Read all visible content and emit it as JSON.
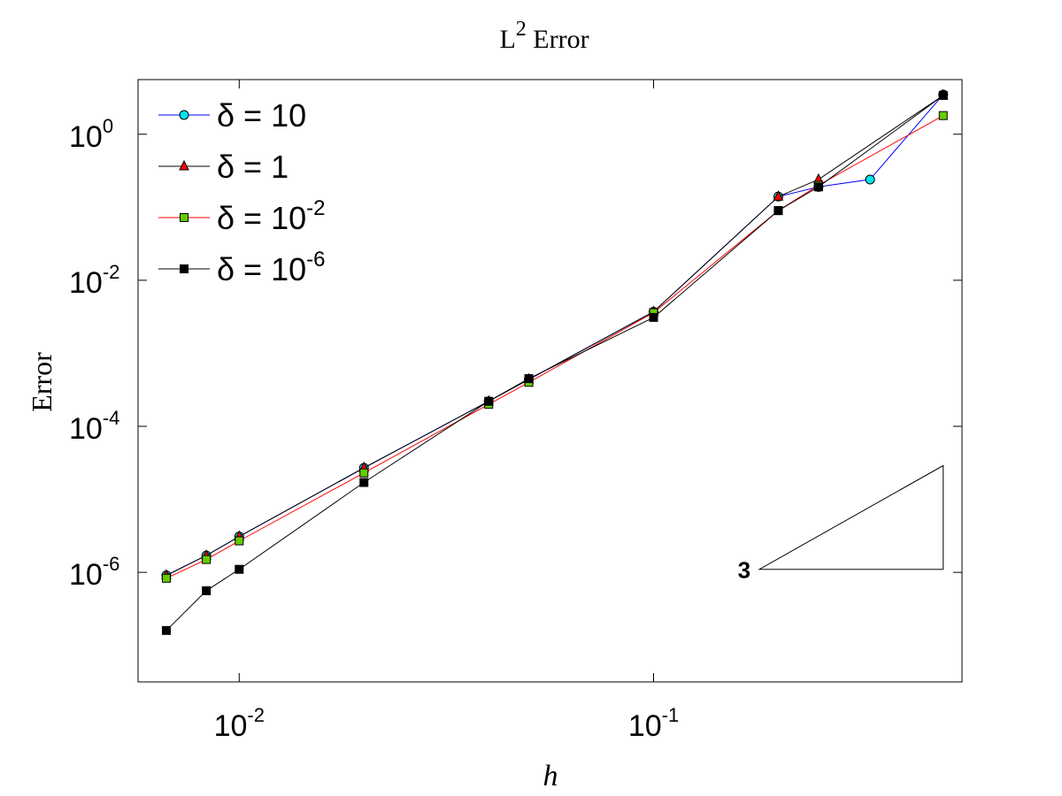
{
  "chart_data": {
    "type": "line",
    "title_main": "L",
    "title_sup": "2",
    "title_rest": " Error",
    "xlabel": "h",
    "ylabel": "Error",
    "x_scale": "log",
    "y_scale": "log",
    "xlim": [
      0.0057,
      0.555
    ],
    "ylim": [
      3.16e-08,
      5.6
    ],
    "x_ticks": [
      {
        "value": 0.01,
        "base": "10",
        "exp": "-2"
      },
      {
        "value": 0.1,
        "base": "10",
        "exp": "-1"
      }
    ],
    "y_ticks": [
      {
        "value": 1e-06,
        "base": "10",
        "exp": "-6"
      },
      {
        "value": 0.0001,
        "base": "10",
        "exp": "-4"
      },
      {
        "value": 0.01,
        "base": "10",
        "exp": "-2"
      },
      {
        "value": 1,
        "base": "10",
        "exp": "0"
      }
    ],
    "grid": false,
    "legend_position": "top-left",
    "series": [
      {
        "name_prefix": "δ = ",
        "name_base": "10",
        "name_exp": "",
        "color": "#0000ff",
        "marker": "circle",
        "marker_fill": "#00e5ee",
        "x": [
          0.00667,
          0.00833,
          0.01,
          0.02,
          0.04,
          0.05,
          0.1,
          0.2,
          0.25,
          0.333,
          0.5
        ],
        "y": [
          9.1e-07,
          1.7e-06,
          3.1e-06,
          2.7e-05,
          0.00022,
          0.00044,
          0.0037,
          0.14,
          0.19,
          0.24,
          3.5
        ]
      },
      {
        "name_prefix": "δ = ",
        "name_base": "1",
        "name_exp": "",
        "color": "#000000",
        "marker": "triangle",
        "marker_fill": "#ff0000",
        "x": [
          0.00667,
          0.00833,
          0.01,
          0.02,
          0.04,
          0.05,
          0.1,
          0.2,
          0.25,
          0.5
        ],
        "y": [
          9.1e-07,
          1.7e-06,
          3.1e-06,
          2.7e-05,
          0.00022,
          0.00044,
          0.0037,
          0.14,
          0.24,
          3.4
        ]
      },
      {
        "name_prefix": "δ = ",
        "name_base": "10",
        "name_exp": "-2",
        "color": "#ff0000",
        "marker": "square",
        "marker_fill": "#66cc00",
        "x": [
          0.00667,
          0.00833,
          0.01,
          0.02,
          0.04,
          0.05,
          0.1,
          0.2,
          0.25,
          0.5
        ],
        "y": [
          8.3e-07,
          1.5e-06,
          2.7e-06,
          2.3e-05,
          0.0002,
          0.0004,
          0.0036,
          0.09,
          0.2,
          1.8
        ]
      },
      {
        "name_prefix": "δ = ",
        "name_base": "10",
        "name_exp": "-6",
        "color": "#000000",
        "marker": "square",
        "marker_fill": "#000000",
        "x": [
          0.00667,
          0.00833,
          0.01,
          0.02,
          0.04,
          0.05,
          0.1,
          0.2,
          0.25,
          0.5
        ],
        "y": [
          1.6e-07,
          5.6e-07,
          1.1e-06,
          1.7e-05,
          0.00022,
          0.00045,
          0.0031,
          0.09,
          0.19,
          3.4
        ]
      }
    ],
    "annotation": {
      "label": "3",
      "triangle_vertices": [
        [
          0.18,
          1.1e-06
        ],
        [
          0.5,
          1.1e-06
        ],
        [
          0.5,
          2.9e-05
        ]
      ]
    }
  }
}
